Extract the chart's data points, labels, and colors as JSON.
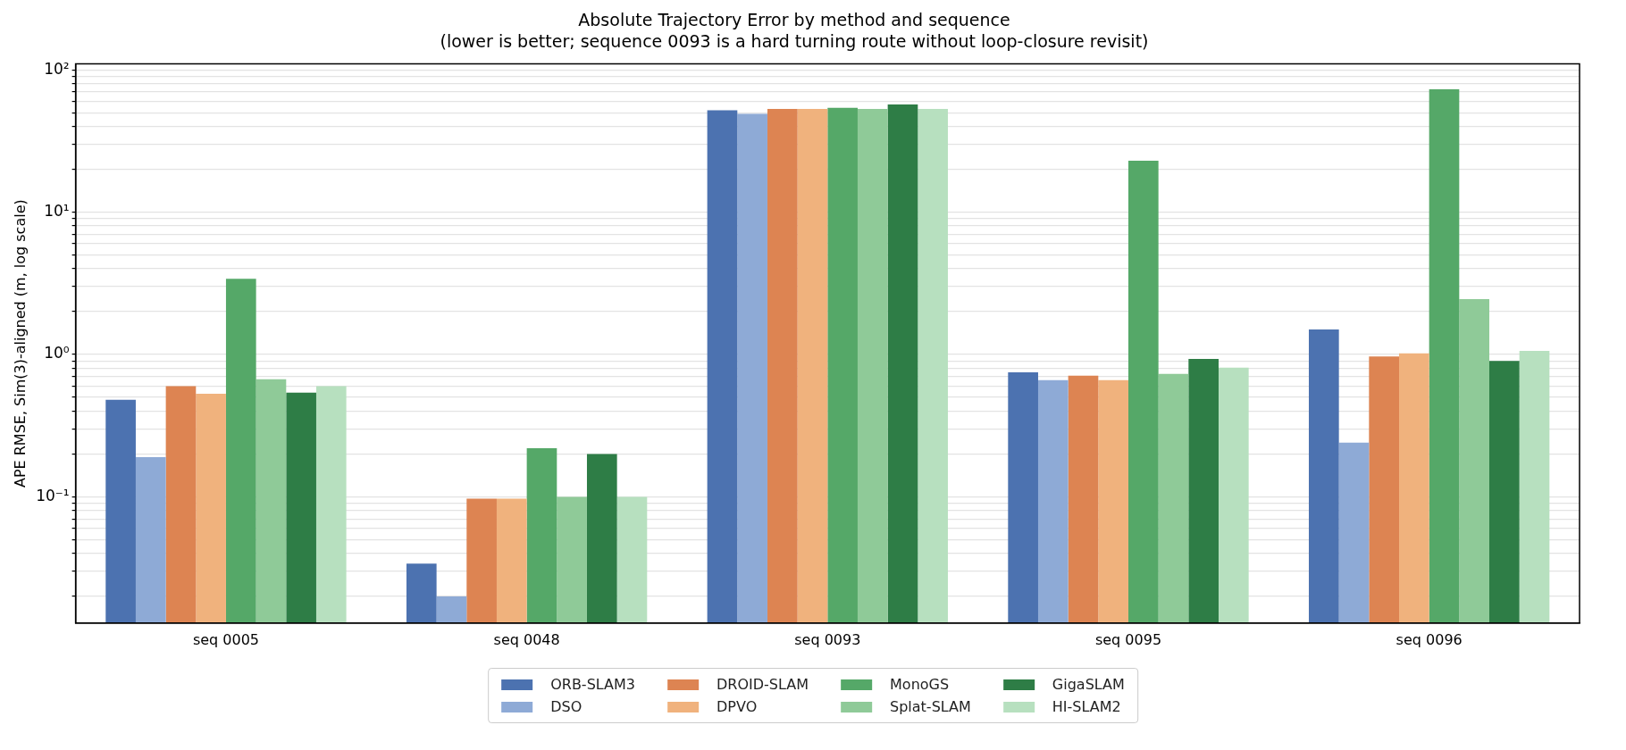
{
  "chart_data": {
    "type": "bar",
    "title": "Absolute Trajectory Error by method and sequence",
    "subtitle": "(lower is better; sequence 0093 is a hard turning route without loop-closure revisit)",
    "ylabel": "APE RMSE, Sim(3)-aligned (m, log scale)",
    "categories": [
      "seq 0005",
      "seq 0048",
      "seq 0093",
      "seq 0095",
      "seq 0096"
    ],
    "series": [
      {
        "name": "ORB-SLAM3",
        "color": "#4c72b0",
        "values": [
          0.48,
          0.034,
          52,
          0.75,
          1.5
        ]
      },
      {
        "name": "DSO",
        "color": "#8eaad6",
        "values": [
          0.19,
          0.02,
          49,
          0.66,
          0.24
        ]
      },
      {
        "name": "DROID-SLAM",
        "color": "#dd8452",
        "values": [
          0.6,
          0.097,
          53,
          0.71,
          0.97
        ]
      },
      {
        "name": "DPVO",
        "color": "#f0b27d",
        "values": [
          0.53,
          0.097,
          53,
          0.66,
          1.02
        ]
      },
      {
        "name": "MonoGS",
        "color": "#55a868",
        "values": [
          3.4,
          0.22,
          54,
          23,
          73
        ]
      },
      {
        "name": "Splat-SLAM",
        "color": "#8fca98",
        "values": [
          0.67,
          0.1,
          53,
          0.73,
          2.45
        ]
      },
      {
        "name": "GigaSLAM",
        "color": "#2e7d46",
        "values": [
          0.54,
          0.2,
          57,
          0.93,
          0.9
        ]
      },
      {
        "name": "HI-SLAM2",
        "color": "#b7e0bf",
        "values": [
          0.6,
          0.1,
          53,
          0.81,
          1.06
        ]
      }
    ],
    "log": "y",
    "ylim": [
      0.013,
      110
    ],
    "yticks": [
      {
        "value": 0.02,
        "label": null
      },
      {
        "value": 0.03,
        "label": null
      },
      {
        "value": 0.04,
        "label": null
      },
      {
        "value": 0.05,
        "label": null
      },
      {
        "value": 0.06,
        "label": null
      },
      {
        "value": 0.07,
        "label": null
      },
      {
        "value": 0.08,
        "label": null
      },
      {
        "value": 0.09,
        "label": null
      },
      {
        "value": 0.1,
        "label": "10⁻¹"
      },
      {
        "value": 0.2,
        "label": null
      },
      {
        "value": 0.3,
        "label": null
      },
      {
        "value": 0.4,
        "label": null
      },
      {
        "value": 0.5,
        "label": null
      },
      {
        "value": 0.6,
        "label": null
      },
      {
        "value": 0.7,
        "label": null
      },
      {
        "value": 0.8,
        "label": null
      },
      {
        "value": 0.9,
        "label": null
      },
      {
        "value": 1,
        "label": "10⁰"
      },
      {
        "value": 2,
        "label": null
      },
      {
        "value": 3,
        "label": null
      },
      {
        "value": 4,
        "label": null
      },
      {
        "value": 5,
        "label": null
      },
      {
        "value": 6,
        "label": null
      },
      {
        "value": 7,
        "label": null
      },
      {
        "value": 8,
        "label": null
      },
      {
        "value": 9,
        "label": null
      },
      {
        "value": 10,
        "label": "10¹"
      },
      {
        "value": 20,
        "label": null
      },
      {
        "value": 30,
        "label": null
      },
      {
        "value": 40,
        "label": null
      },
      {
        "value": 50,
        "label": null
      },
      {
        "value": 60,
        "label": null
      },
      {
        "value": 70,
        "label": null
      },
      {
        "value": 80,
        "label": null
      },
      {
        "value": 90,
        "label": null
      },
      {
        "value": 100,
        "label": "10²"
      }
    ],
    "grid": "y",
    "legend": "bottom"
  }
}
